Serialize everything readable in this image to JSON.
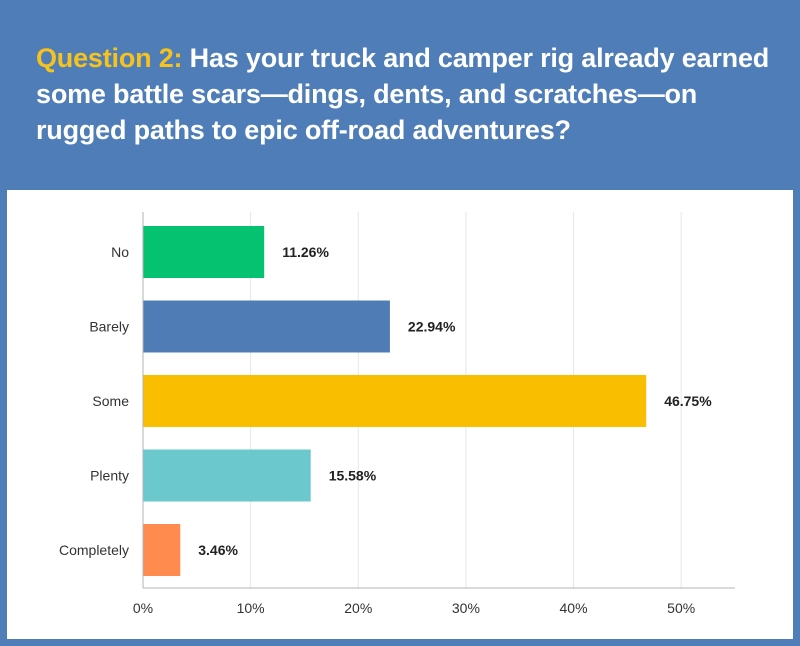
{
  "header": {
    "question_number": "Question 2:",
    "question_text": "Has your truck and camper rig already earned some battle scars—dings, dents, and scratches—on rugged paths to epic off-road adventures?"
  },
  "chart_data": {
    "type": "bar",
    "orientation": "horizontal",
    "title": "",
    "xlabel": "",
    "ylabel": "",
    "categories": [
      "No",
      "Barely",
      "Some",
      "Plenty",
      "Completely"
    ],
    "values": [
      11.26,
      22.94,
      46.75,
      15.58,
      3.46
    ],
    "value_labels": [
      "11.26%",
      "22.94%",
      "46.75%",
      "15.58%",
      "3.46%"
    ],
    "colors": [
      "#05c270",
      "#507cb6",
      "#f9be00",
      "#6bc8cd",
      "#ff8b4f"
    ],
    "xlim": [
      0,
      55
    ],
    "ticks": [
      0,
      10,
      20,
      30,
      40,
      50
    ],
    "tick_labels": [
      "0%",
      "10%",
      "20%",
      "30%",
      "40%",
      "50%"
    ],
    "grid": true,
    "gridline_color": "#e6e6e6",
    "axis_color": "#b3b3b3"
  }
}
